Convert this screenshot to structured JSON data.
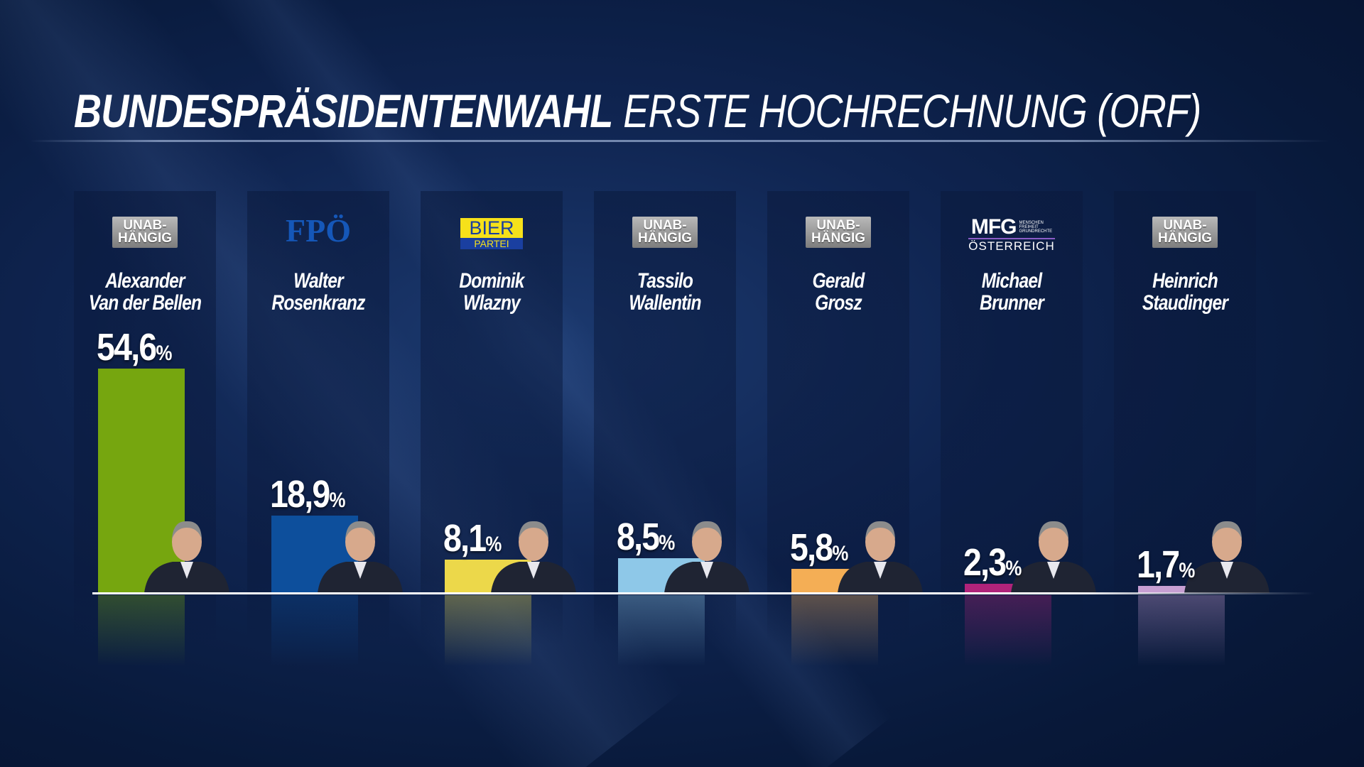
{
  "chart_data": {
    "type": "bar",
    "title": "BUNDESPRÄSIDENTENWAHL",
    "subtitle": "ERSTE HOCHRECHNUNG (ORF)",
    "categories": [
      "Alexander\nVan der Bellen",
      "Walter\nRosenkranz",
      "Dominik\nWlazny",
      "Tassilo\nWallentin",
      "Gerald\nGrosz",
      "Michael\nBrunner",
      "Heinrich\nStaudinger"
    ],
    "parties": [
      {
        "label": "UNAB-\nHÄNGIG"
      },
      {
        "label": "FPÖ"
      },
      {
        "label": "BIER",
        "sub": "PARTEI"
      },
      {
        "label": "UNAB-\nHÄNGIG"
      },
      {
        "label": "UNAB-\nHÄNGIG"
      },
      {
        "label": "MFG",
        "tagline": "MENSCHEN\nFREIHEIT\nGRUNDRECHTE",
        "sub": "ÖSTERREICH"
      },
      {
        "label": "UNAB-\nHÄNGIG"
      }
    ],
    "values": [
      54.6,
      18.9,
      8.1,
      8.5,
      5.8,
      2.3,
      1.7
    ],
    "value_labels": [
      "54,6%",
      "18,9%",
      "8,1%",
      "8,5%",
      "5,8%",
      "2,3%",
      "1,7%"
    ],
    "colors": [
      "#76a60f",
      "#0d4f9c",
      "#ecd84a",
      "#8ec8e8",
      "#f4ae55",
      "#b0237a",
      "#c79fd3"
    ]
  }
}
